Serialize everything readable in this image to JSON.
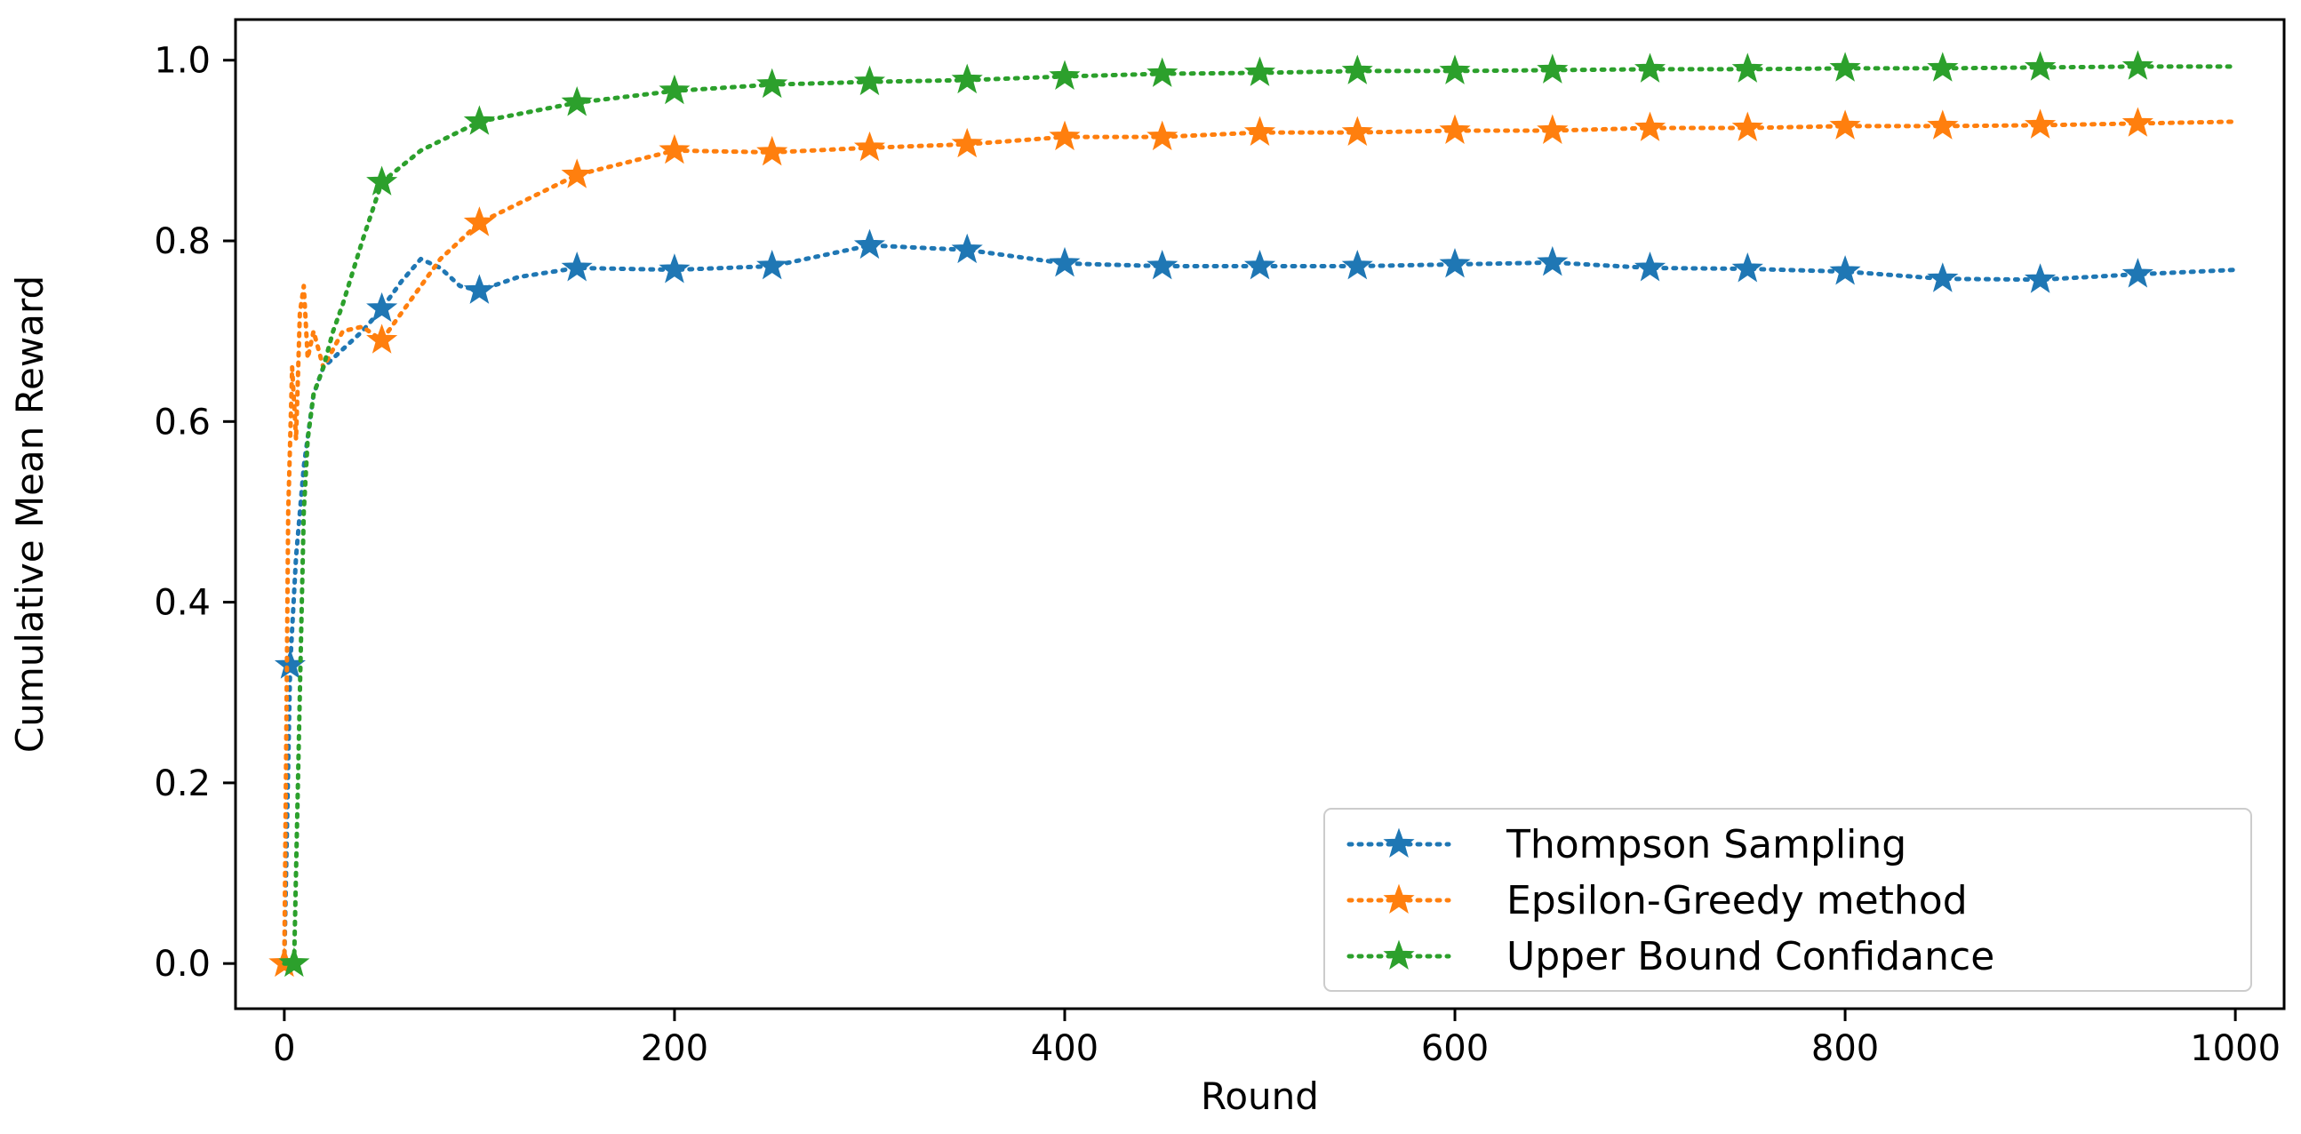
{
  "chart_data": {
    "type": "line",
    "title": "",
    "xlabel": "Round",
    "ylabel": "Cumulative Mean Reward",
    "xlim": [
      -25,
      1025
    ],
    "ylim": [
      -0.05,
      1.045
    ],
    "xticks": [
      0,
      200,
      400,
      600,
      800,
      1000
    ],
    "yticks": [
      0.0,
      0.2,
      0.4,
      0.6,
      0.8,
      1.0
    ],
    "xtick_labels": [
      "0",
      "200",
      "400",
      "600",
      "800",
      "1000"
    ],
    "ytick_labels": [
      "0.0",
      "0.2",
      "0.4",
      "0.6",
      "0.8",
      "1.0"
    ],
    "grid": false,
    "legend_position": "lower-right",
    "marker": "star",
    "line_style": "dotted",
    "series": [
      {
        "name": "Thompson Sampling",
        "color": "#1f77b4",
        "x": [
          0,
          3,
          6,
          10,
          15,
          20,
          25,
          30,
          40,
          50,
          60,
          70,
          80,
          90,
          100,
          120,
          150,
          200,
          250,
          300,
          350,
          400,
          450,
          500,
          550,
          600,
          650,
          700,
          750,
          800,
          850,
          900,
          950,
          1000
        ],
        "y": [
          0.0,
          0.33,
          0.45,
          0.55,
          0.63,
          0.66,
          0.67,
          0.68,
          0.7,
          0.725,
          0.755,
          0.78,
          0.77,
          0.75,
          0.745,
          0.76,
          0.77,
          0.768,
          0.772,
          0.795,
          0.79,
          0.775,
          0.772,
          0.772,
          0.772,
          0.774,
          0.776,
          0.77,
          0.769,
          0.766,
          0.758,
          0.757,
          0.763,
          0.768
        ],
        "marker_x": [
          3,
          50,
          100,
          150,
          200,
          250,
          300,
          350,
          400,
          450,
          500,
          550,
          600,
          650,
          700,
          750,
          800,
          850,
          900,
          950
        ]
      },
      {
        "name": "Epsilon-Greedy method",
        "color": "#ff7f0e",
        "x": [
          0,
          2,
          4,
          6,
          8,
          10,
          12,
          15,
          20,
          25,
          30,
          40,
          50,
          60,
          80,
          100,
          150,
          200,
          250,
          300,
          350,
          400,
          450,
          500,
          550,
          600,
          650,
          700,
          750,
          800,
          850,
          900,
          950,
          1000
        ],
        "y": [
          0.0,
          0.5,
          0.66,
          0.58,
          0.72,
          0.75,
          0.67,
          0.7,
          0.66,
          0.68,
          0.7,
          0.705,
          0.69,
          0.72,
          0.78,
          0.82,
          0.873,
          0.9,
          0.898,
          0.903,
          0.907,
          0.915,
          0.915,
          0.92,
          0.92,
          0.922,
          0.922,
          0.925,
          0.925,
          0.927,
          0.927,
          0.928,
          0.93,
          0.932
        ],
        "marker_x": [
          0,
          50,
          100,
          150,
          200,
          250,
          300,
          350,
          400,
          450,
          500,
          550,
          600,
          650,
          700,
          750,
          800,
          850,
          900,
          950
        ]
      },
      {
        "name": "Upper Bound Confidance",
        "color": "#2ca02c",
        "x": [
          0,
          5,
          8,
          10,
          12,
          15,
          20,
          25,
          30,
          40,
          50,
          70,
          100,
          150,
          200,
          250,
          300,
          350,
          400,
          450,
          500,
          550,
          600,
          650,
          700,
          750,
          800,
          850,
          900,
          950,
          1000
        ],
        "y": [
          0.0,
          0.0,
          0.3,
          0.5,
          0.58,
          0.63,
          0.66,
          0.7,
          0.73,
          0.8,
          0.865,
          0.9,
          0.932,
          0.953,
          0.966,
          0.973,
          0.976,
          0.978,
          0.982,
          0.985,
          0.986,
          0.988,
          0.988,
          0.989,
          0.99,
          0.99,
          0.991,
          0.991,
          0.992,
          0.993,
          0.993
        ],
        "marker_x": [
          5,
          50,
          100,
          150,
          200,
          250,
          300,
          350,
          400,
          450,
          500,
          550,
          600,
          650,
          700,
          750,
          800,
          850,
          900,
          950
        ]
      }
    ]
  }
}
